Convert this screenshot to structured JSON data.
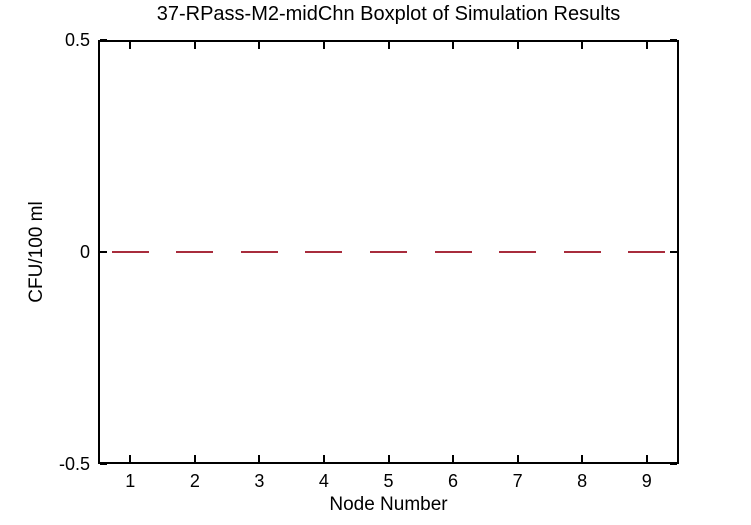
{
  "chart_data": {
    "type": "boxplot",
    "title": "37-RPass-M2-midChn Boxplot of Simulation Results",
    "xlabel": "Node Number",
    "ylabel": "CFU/100 ml",
    "categories": [
      "1",
      "2",
      "3",
      "4",
      "5",
      "6",
      "7",
      "8",
      "9"
    ],
    "series": [
      {
        "name": "median",
        "values": [
          0,
          0,
          0,
          0,
          0,
          0,
          0,
          0,
          0
        ]
      }
    ],
    "ylim": [
      -0.5,
      0.5
    ],
    "y_ticks": [
      0.5,
      0,
      -0.5
    ],
    "y_tick_labels": [
      "0.5",
      "0",
      "-0.5"
    ],
    "grid": false,
    "legend": false,
    "box_frame": true,
    "colors": {
      "median": "#a82c3c",
      "axis": "#000000",
      "background": "#ffffff"
    }
  }
}
